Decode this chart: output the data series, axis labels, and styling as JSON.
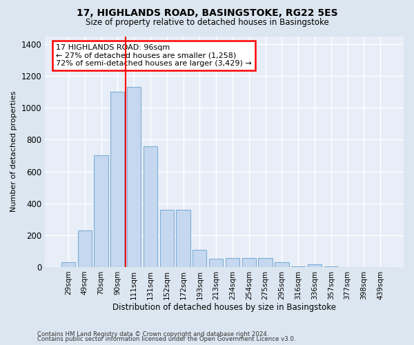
{
  "title": "17, HIGHLANDS ROAD, BASINGSTOKE, RG22 5ES",
  "subtitle": "Size of property relative to detached houses in Basingstoke",
  "xlabel": "Distribution of detached houses by size in Basingstoke",
  "ylabel": "Number of detached properties",
  "categories": [
    "29sqm",
    "49sqm",
    "70sqm",
    "90sqm",
    "111sqm",
    "131sqm",
    "152sqm",
    "172sqm",
    "193sqm",
    "213sqm",
    "234sqm",
    "254sqm",
    "275sqm",
    "295sqm",
    "316sqm",
    "336sqm",
    "357sqm",
    "377sqm",
    "398sqm",
    "439sqm"
  ],
  "values": [
    30,
    230,
    700,
    1100,
    1130,
    760,
    360,
    360,
    110,
    50,
    58,
    58,
    55,
    28,
    5,
    18,
    2,
    0,
    0,
    0
  ],
  "bar_color": "#c5d8f0",
  "bar_edge_color": "#7bafd4",
  "vline_color": "red",
  "vline_index": 3.5,
  "annotation_text": "17 HIGHLANDS ROAD: 96sqm\n← 27% of detached houses are smaller (1,258)\n72% of semi-detached houses are larger (3,429) →",
  "annotation_box_facecolor": "white",
  "annotation_box_edgecolor": "red",
  "ylim": [
    0,
    1450
  ],
  "yticks": [
    0,
    200,
    400,
    600,
    800,
    1000,
    1200,
    1400
  ],
  "bg_color": "#dce6f0",
  "plot_bg_color": "#e8eef7",
  "grid_color": "white",
  "footer_line1": "Contains HM Land Registry data © Crown copyright and database right 2024.",
  "footer_line2": "Contains public sector information licensed under the Open Government Licence v3.0."
}
